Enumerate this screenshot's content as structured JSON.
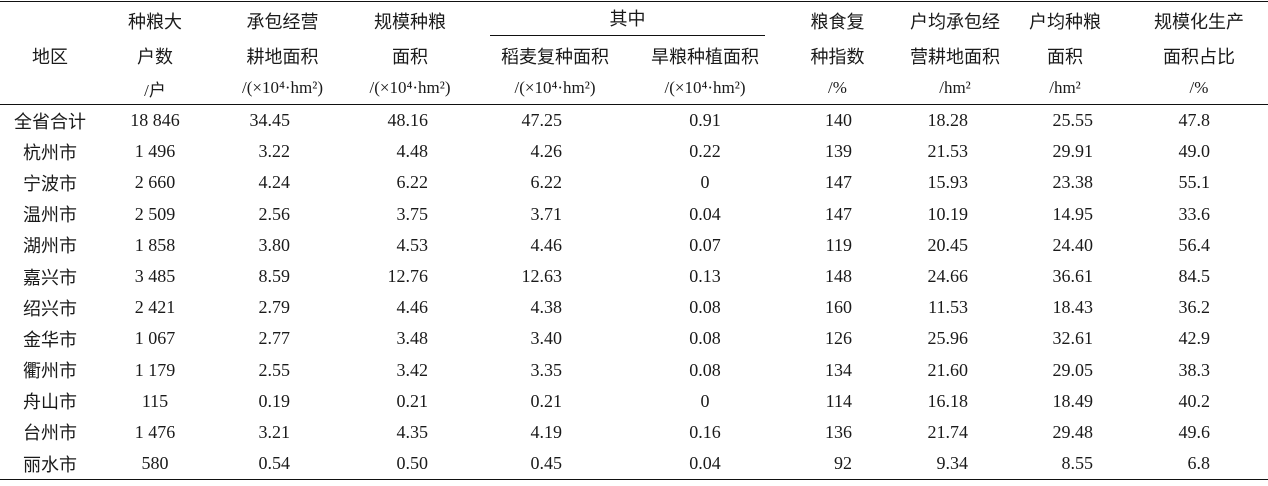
{
  "table": {
    "header": {
      "region_label": "地区",
      "group_label": "其中",
      "columns": [
        {
          "lines": [
            "种粮大",
            "户数"
          ],
          "unit": "/户"
        },
        {
          "lines": [
            "承包经营",
            "耕地面积"
          ],
          "unit": "/(×10⁴·hm²)"
        },
        {
          "lines": [
            "规模种粮",
            "面积"
          ],
          "unit": "/(×10⁴·hm²)"
        },
        {
          "lines": [
            "稻麦复种面积"
          ],
          "unit": "/(×10⁴·hm²)"
        },
        {
          "lines": [
            "旱粮种植面积"
          ],
          "unit": "/(×10⁴·hm²)"
        },
        {
          "lines": [
            "粮食复",
            "种指数"
          ],
          "unit": "/%"
        },
        {
          "lines": [
            "户均承包经",
            "营耕地面积"
          ],
          "unit": "/hm²"
        },
        {
          "lines": [
            "户均种粮",
            "面积"
          ],
          "unit": "/hm²"
        },
        {
          "lines": [
            "规模化生产",
            "面积占比"
          ],
          "unit": "/%"
        }
      ]
    },
    "rows": [
      {
        "region": "全省合计",
        "values": [
          "18 846",
          "34.45",
          "48.16",
          "47.25",
          "0.91",
          "140",
          "18.28",
          "25.55",
          "47.8"
        ]
      },
      {
        "region": "杭州市",
        "values": [
          "1 496",
          "3.22",
          "4.48",
          "4.26",
          "0.22",
          "139",
          "21.53",
          "29.91",
          "49.0"
        ]
      },
      {
        "region": "宁波市",
        "values": [
          "2 660",
          "4.24",
          "6.22",
          "6.22",
          "0",
          "147",
          "15.93",
          "23.38",
          "55.1"
        ]
      },
      {
        "region": "温州市",
        "values": [
          "2 509",
          "2.56",
          "3.75",
          "3.71",
          "0.04",
          "147",
          "10.19",
          "14.95",
          "33.6"
        ]
      },
      {
        "region": "湖州市",
        "values": [
          "1 858",
          "3.80",
          "4.53",
          "4.46",
          "0.07",
          "119",
          "20.45",
          "24.40",
          "56.4"
        ]
      },
      {
        "region": "嘉兴市",
        "values": [
          "3 485",
          "8.59",
          "12.76",
          "12.63",
          "0.13",
          "148",
          "24.66",
          "36.61",
          "84.5"
        ]
      },
      {
        "region": "绍兴市",
        "values": [
          "2 421",
          "2.79",
          "4.46",
          "4.38",
          "0.08",
          "160",
          "11.53",
          "18.43",
          "36.2"
        ]
      },
      {
        "region": "金华市",
        "values": [
          "1 067",
          "2.77",
          "3.48",
          "3.40",
          "0.08",
          "126",
          "25.96",
          "32.61",
          "42.9"
        ]
      },
      {
        "region": "衢州市",
        "values": [
          "1 179",
          "2.55",
          "3.42",
          "3.35",
          "0.08",
          "134",
          "21.60",
          "29.05",
          "38.3"
        ]
      },
      {
        "region": "舟山市",
        "values": [
          "115",
          "0.19",
          "0.21",
          "0.21",
          "0",
          "114",
          "16.18",
          "18.49",
          "40.2"
        ]
      },
      {
        "region": "台州市",
        "values": [
          "1 476",
          "3.21",
          "4.35",
          "4.19",
          "0.16",
          "136",
          "21.74",
          "29.48",
          "49.6"
        ]
      },
      {
        "region": "丽水市",
        "values": [
          "580",
          "0.54",
          "0.50",
          "0.45",
          "0.04",
          "92",
          "9.34",
          "8.55",
          "6.8"
        ]
      }
    ]
  }
}
